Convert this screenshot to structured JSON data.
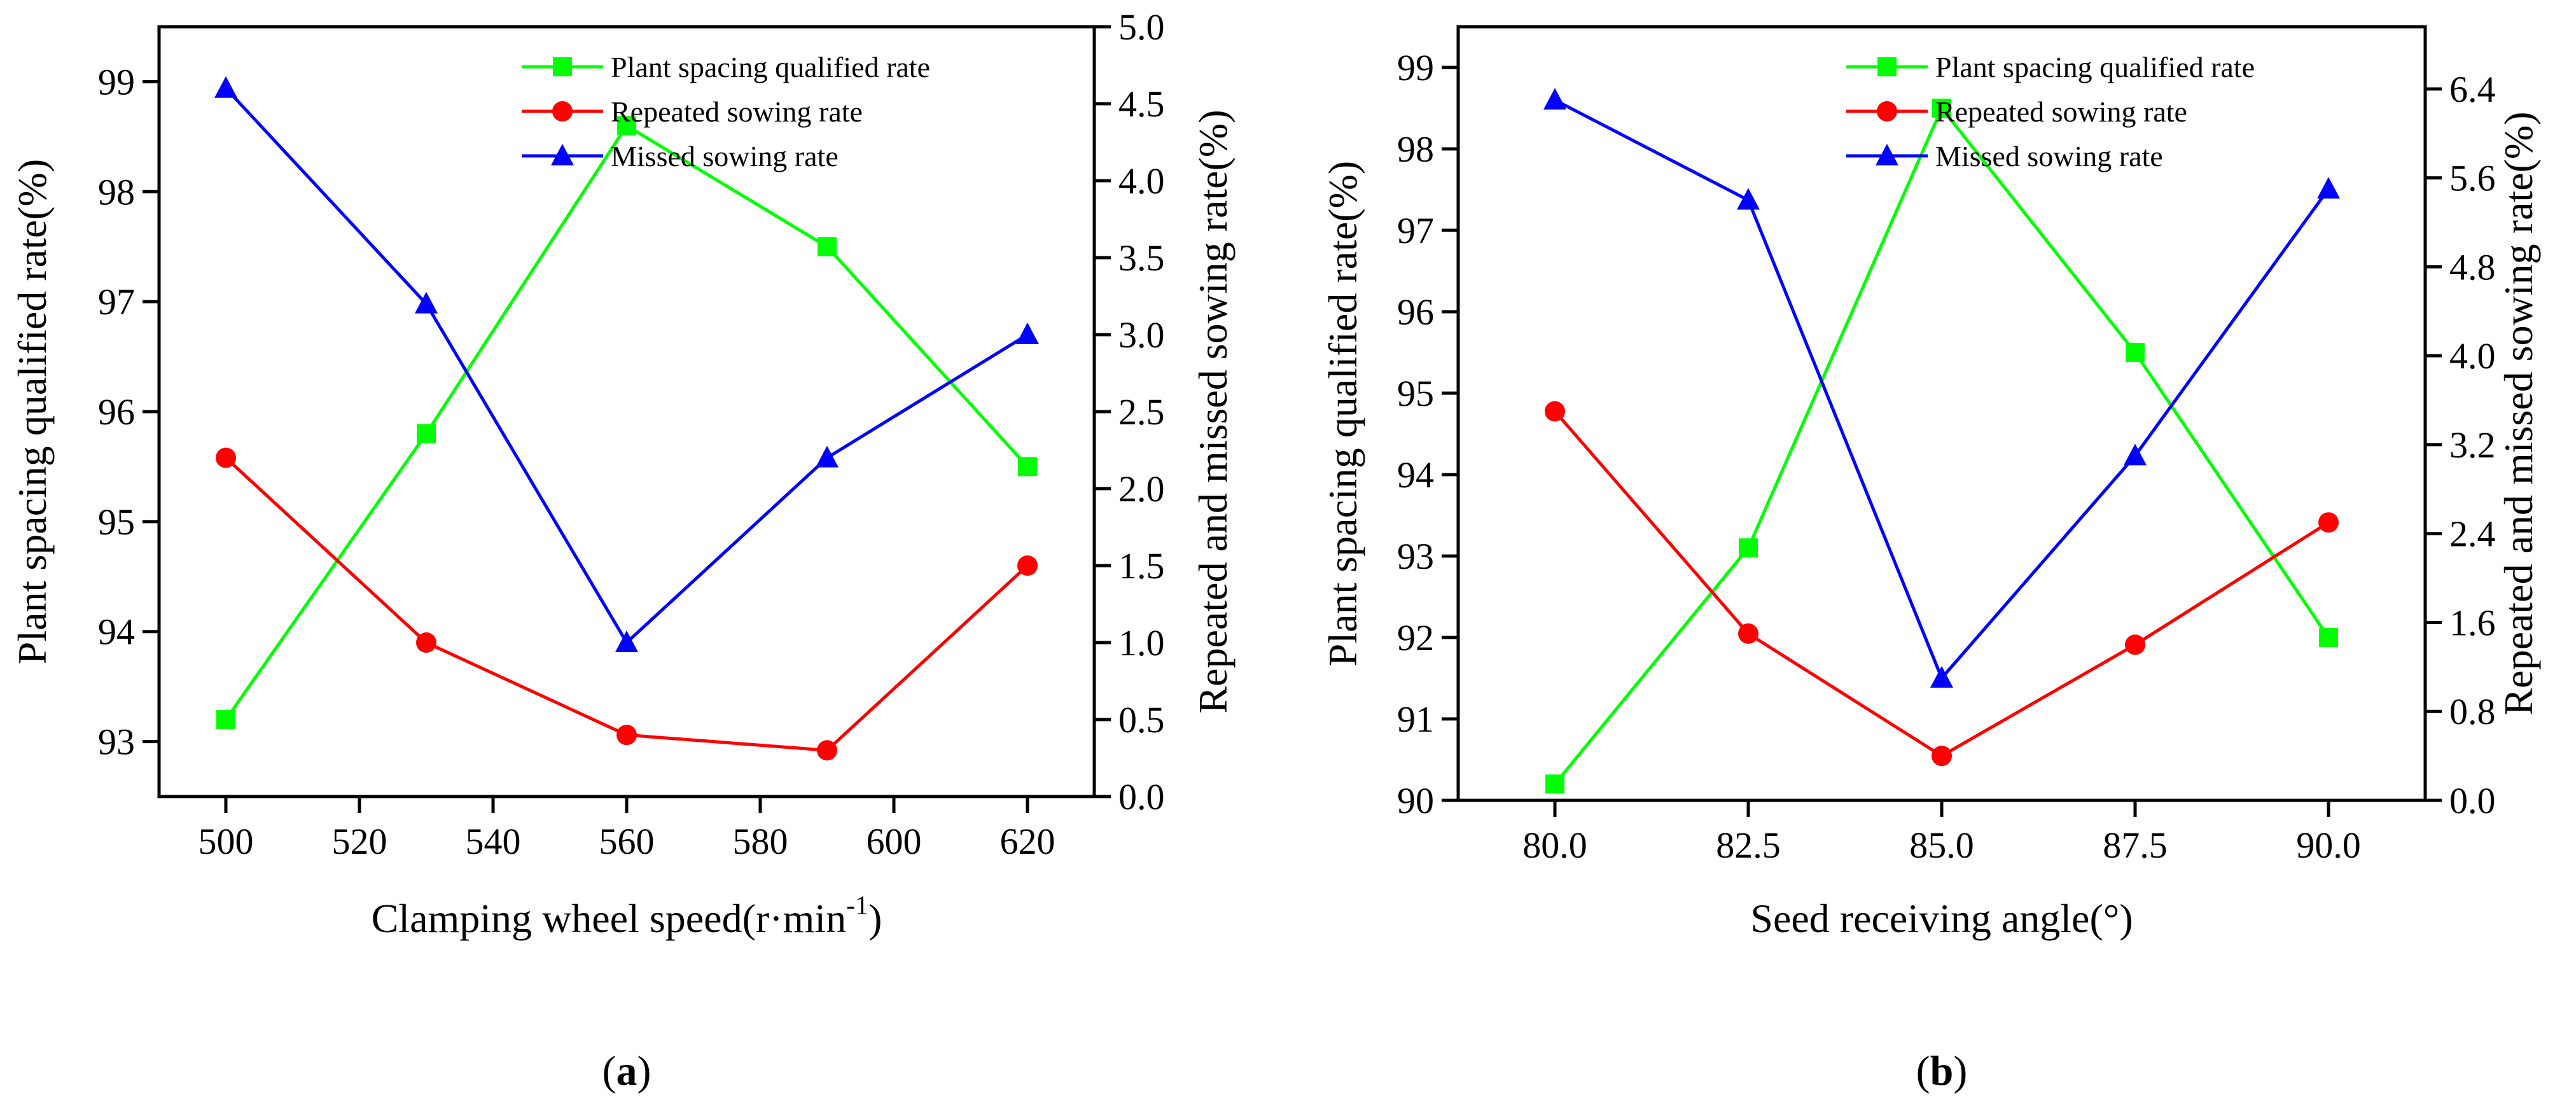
{
  "colors": {
    "qualified": "#00ff00",
    "repeated": "#ff0000",
    "missed": "#0000ff",
    "axis": "#000000"
  },
  "chart_data": [
    {
      "type": "line",
      "panel_label": "a",
      "xlabel": "Clamping wheel speed(r·min",
      "xlabel_sup": "-1",
      "xlabel_suffix": ")",
      "ylabel": "Plant spacing qualified rate(%)",
      "y2label": "Repeated and missed sowing rate(%)",
      "x": [
        500,
        530,
        560,
        590,
        620
      ],
      "xlim": [
        490,
        630
      ],
      "xticks": [
        500,
        520,
        540,
        560,
        580,
        600,
        620
      ],
      "xtick_labels": [
        "500",
        "520",
        "540",
        "560",
        "580",
        "600",
        "620"
      ],
      "ylim": [
        92.5,
        99.5
      ],
      "yticks": [
        93,
        94,
        95,
        96,
        97,
        98,
        99
      ],
      "ytick_labels": [
        "93",
        "94",
        "95",
        "96",
        "97",
        "98",
        "99"
      ],
      "y2lim": [
        0,
        5
      ],
      "y2ticks": [
        0,
        0.5,
        1,
        1.5,
        2,
        2.5,
        3,
        3.5,
        4,
        4.5,
        5
      ],
      "y2tick_labels": [
        "0.0",
        "0.5",
        "1.0",
        "1.5",
        "2.0",
        "2.5",
        "3.0",
        "3.5",
        "4.0",
        "4.5",
        "5.0"
      ],
      "legend_position": "top-right",
      "series": [
        {
          "name": "Plant spacing qualified rate",
          "axis": "left",
          "marker": "square",
          "color_key": "qualified",
          "values": [
            93.2,
            95.8,
            98.6,
            97.5,
            95.5
          ]
        },
        {
          "name": "Repeated sowing rate",
          "axis": "right",
          "marker": "circle",
          "color_key": "repeated",
          "values": [
            2.2,
            1.0,
            0.4,
            0.3,
            1.5
          ]
        },
        {
          "name": "Missed sowing rate",
          "axis": "right",
          "marker": "triangle",
          "color_key": "missed",
          "values": [
            4.6,
            3.2,
            1.0,
            2.2,
            3.0
          ]
        }
      ]
    },
    {
      "type": "line",
      "panel_label": "b",
      "xlabel": "Seed receiving angle(°)",
      "xlabel_sup": "",
      "xlabel_suffix": "",
      "ylabel": "Plant spacing qualified rate(%)",
      "y2label": "Repeated and missed sowing rate(%)",
      "x": [
        80.0,
        82.5,
        85.0,
        87.5,
        90.0
      ],
      "xlim": [
        78.75,
        91.25
      ],
      "xticks": [
        80.0,
        82.5,
        85.0,
        87.5,
        90.0
      ],
      "xtick_labels": [
        "80.0",
        "82.5",
        "85.0",
        "87.5",
        "90.0"
      ],
      "ylim": [
        90,
        99.5
      ],
      "yticks": [
        90,
        91,
        92,
        93,
        94,
        95,
        96,
        97,
        98,
        99
      ],
      "ytick_labels": [
        "90",
        "91",
        "92",
        "93",
        "94",
        "95",
        "96",
        "97",
        "98",
        "99"
      ],
      "y2lim": [
        0,
        6.96
      ],
      "y2ticks": [
        0,
        0.8,
        1.6,
        2.4,
        3.2,
        4.0,
        4.8,
        5.6,
        6.4
      ],
      "y2tick_labels": [
        "0.0",
        "0.8",
        "1.6",
        "2.4",
        "3.2",
        "4.0",
        "4.8",
        "5.6",
        "6.4"
      ],
      "legend_position": "top-right",
      "series": [
        {
          "name": "Plant spacing qualified rate",
          "axis": "left",
          "marker": "square",
          "color_key": "qualified",
          "values": [
            90.2,
            93.1,
            98.5,
            95.5,
            92.0
          ]
        },
        {
          "name": "Repeated sowing rate",
          "axis": "right",
          "marker": "circle",
          "color_key": "repeated",
          "values": [
            3.5,
            1.5,
            0.4,
            1.4,
            2.5
          ]
        },
        {
          "name": "Missed sowing rate",
          "axis": "right",
          "marker": "triangle",
          "color_key": "missed",
          "values": [
            6.3,
            5.4,
            1.1,
            3.1,
            5.5
          ]
        }
      ]
    }
  ]
}
